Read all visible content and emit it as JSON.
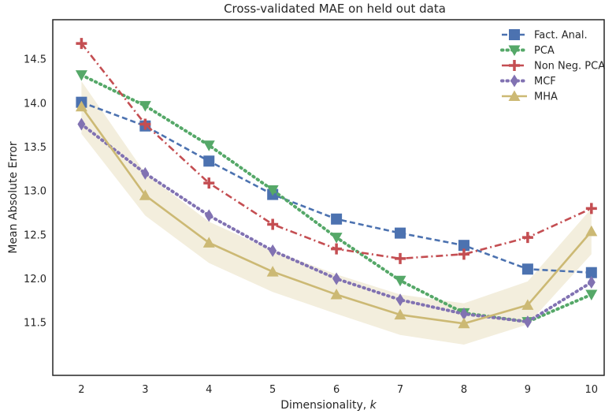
{
  "chart_data": {
    "type": "line",
    "title": "Cross-validated MAE on held out data",
    "xlabel_text": "Dimensionality, ",
    "xlabel_var": "k",
    "ylabel": "Mean Absolute Error",
    "x": [
      2,
      3,
      4,
      5,
      6,
      7,
      8,
      9,
      10
    ],
    "xlim": [
      1.55,
      10.2
    ],
    "ylim": [
      10.9,
      14.95
    ],
    "yticks": [
      "11.5",
      "12.0",
      "12.5",
      "13.0",
      "13.5",
      "14.0",
      "14.5"
    ],
    "grid": false,
    "legend_position": "top-right",
    "series": [
      {
        "name": "Fact. Anal.",
        "color": "#4c72b0",
        "marker": "square",
        "line": "dashed",
        "values": [
          14.01,
          13.74,
          13.34,
          12.96,
          12.68,
          12.52,
          12.38,
          12.11,
          12.07
        ]
      },
      {
        "name": "PCA",
        "color": "#55a868",
        "marker": "triangle-down",
        "line": "dotted",
        "values": [
          14.32,
          13.97,
          13.52,
          13.01,
          12.47,
          11.98,
          11.61,
          11.51,
          11.82
        ]
      },
      {
        "name": "Non Neg. PCA",
        "color": "#c44e52",
        "marker": "plus",
        "line": "dash-dot",
        "values": [
          14.68,
          13.76,
          13.09,
          12.62,
          12.34,
          12.23,
          12.28,
          12.47,
          12.8
        ]
      },
      {
        "name": "MCF",
        "color": "#8172b2",
        "marker": "diamond",
        "line": "dotted",
        "values": [
          13.76,
          13.2,
          12.72,
          12.32,
          12.0,
          11.76,
          11.6,
          11.51,
          11.96
        ]
      },
      {
        "name": "MHA",
        "color": "#ccb974",
        "marker": "triangle-up",
        "line": "solid",
        "values": [
          13.96,
          12.95,
          12.41,
          12.08,
          11.82,
          11.59,
          11.49,
          11.7,
          12.54
        ],
        "band_low": [
          13.65,
          12.72,
          12.18,
          11.85,
          11.6,
          11.36,
          11.25,
          11.48,
          12.28
        ],
        "band_high": [
          14.25,
          13.2,
          12.65,
          12.32,
          12.05,
          11.82,
          11.72,
          11.97,
          12.8
        ],
        "band_color": "#f3eedd"
      }
    ]
  }
}
